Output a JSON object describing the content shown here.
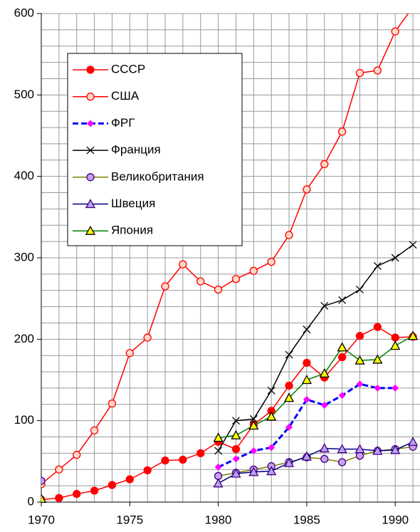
{
  "chart_data": {
    "type": "line",
    "x": [
      1970,
      1971,
      1972,
      1973,
      1974,
      1975,
      1976,
      1977,
      1978,
      1979,
      1980,
      1981,
      1982,
      1983,
      1984,
      1985,
      1986,
      1987,
      1988,
      1989,
      1990,
      1991
    ],
    "xlim": [
      1970,
      1991.4
    ],
    "xticks": [
      1970,
      1975,
      1980,
      1985,
      1990
    ],
    "ylim": [
      0,
      600
    ],
    "yticks": [
      0,
      100,
      200,
      300,
      400,
      500,
      600
    ],
    "grid": true,
    "legend": "upper left",
    "series": [
      {
        "name": "СССР",
        "color": "#ff0000",
        "marker": "circle",
        "marker_fill": "#ff0000",
        "dash": false,
        "values": [
          3,
          5,
          10,
          14,
          21,
          28,
          39,
          51,
          52,
          60,
          74,
          65,
          95,
          112,
          143,
          171,
          153,
          178,
          204,
          215,
          202,
          203
        ]
      },
      {
        "name": "США",
        "color": "#ff0000",
        "marker": "circle",
        "marker_fill": "#ffd8c8",
        "dash": false,
        "values": [
          22,
          40,
          58,
          88,
          121,
          183,
          202,
          265,
          292,
          271,
          261,
          274,
          284,
          295,
          328,
          384,
          415,
          455,
          527,
          530,
          578,
          608
        ]
      },
      {
        "name": "ФРГ",
        "color": "#0000ff",
        "marker": "diamond",
        "marker_fill": "#ff00ff",
        "dash": true,
        "values": [
          null,
          null,
          null,
          null,
          null,
          null,
          null,
          null,
          null,
          null,
          43,
          53,
          63,
          67,
          92,
          126,
          119,
          131,
          145,
          140,
          140,
          null
        ]
      },
      {
        "name": "Франция",
        "color": "#000000",
        "marker": "cross",
        "marker_fill": "#000000",
        "dash": false,
        "values": [
          null,
          null,
          null,
          null,
          null,
          null,
          null,
          null,
          null,
          null,
          63,
          100,
          102,
          137,
          181,
          212,
          241,
          248,
          261,
          290,
          300,
          316
        ]
      },
      {
        "name": "Великобритания",
        "color": "#808000",
        "marker": "circle",
        "marker_fill": "#c8a0f0",
        "dash": false,
        "values": [
          26,
          null,
          null,
          null,
          null,
          null,
          null,
          null,
          null,
          null,
          32,
          36,
          40,
          44,
          49,
          55,
          53,
          49,
          57,
          63,
          65,
          68
        ]
      },
      {
        "name": "Швеция",
        "color": "#000080",
        "marker": "triangle",
        "marker_fill": "#b8a0f0",
        "dash": false,
        "values": [
          null,
          null,
          null,
          null,
          null,
          null,
          null,
          null,
          null,
          null,
          23,
          35,
          37,
          38,
          48,
          56,
          66,
          65,
          65,
          63,
          64,
          74
        ]
      },
      {
        "name": "Япония",
        "color": "#008000",
        "marker": "triangle",
        "marker_fill": "#ffff00",
        "dash": false,
        "values": [
          4,
          null,
          null,
          null,
          null,
          null,
          null,
          null,
          null,
          null,
          79,
          82,
          94,
          105,
          128,
          150,
          158,
          190,
          174,
          175,
          192,
          204
        ]
      }
    ]
  }
}
